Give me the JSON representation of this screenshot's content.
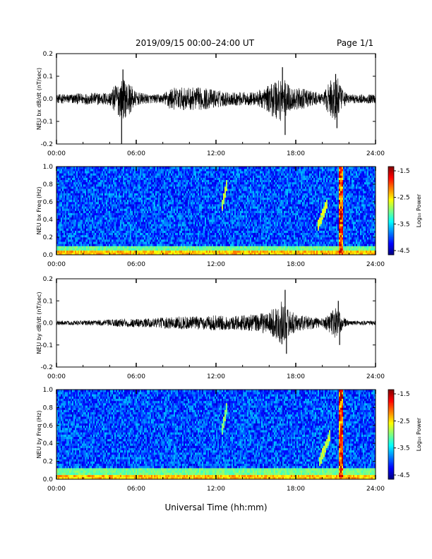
{
  "header": {
    "title": "2019/09/15  00:00–24:00 UT",
    "page": "Page 1/1"
  },
  "xaxis": {
    "title": "Universal Time (hh:mm)",
    "ticks": [
      "00:00",
      "06:00",
      "12:00",
      "18:00",
      "24:00"
    ],
    "range_hours": [
      0,
      24
    ]
  },
  "colorbar": {
    "label": "Log₁₀ Power",
    "ticks": [
      "-1.5",
      "-2.5",
      "-3.5",
      "-4.5"
    ],
    "range": [
      -4.5,
      -1.5
    ],
    "colormap": "jet"
  },
  "chart_data": [
    {
      "type": "line",
      "ylabel": "NEU bx dB/dt (nT/sec)",
      "ylim": [
        -0.2,
        0.2
      ],
      "yticks": [
        "0.2",
        "0.1",
        "0.0",
        "-0.1",
        "-0.2"
      ],
      "x_unit": "hours UT",
      "envelope": {
        "x": [
          0,
          2,
          4,
          4.5,
          5,
          5.5,
          6,
          7,
          8,
          8.5,
          10,
          11,
          12,
          13,
          14,
          15,
          16,
          16.5,
          17,
          17.5,
          18,
          19,
          20,
          20.5,
          21,
          21.5,
          22,
          24
        ],
        "amplitude": [
          0.02,
          0.025,
          0.03,
          0.07,
          0.09,
          0.07,
          0.03,
          0.02,
          0.02,
          0.05,
          0.05,
          0.05,
          0.04,
          0.03,
          0.03,
          0.03,
          0.06,
          0.1,
          0.1,
          0.06,
          0.05,
          0.04,
          0.02,
          0.07,
          0.12,
          0.04,
          0.02,
          0.02
        ]
      },
      "spikes": [
        {
          "x": 4.9,
          "y": -0.2
        },
        {
          "x": 5.0,
          "y": 0.13
        },
        {
          "x": 17.0,
          "y": 0.14
        },
        {
          "x": 17.2,
          "y": -0.16
        },
        {
          "x": 21.0,
          "y": 0.11
        },
        {
          "x": 21.1,
          "y": -0.13
        }
      ]
    },
    {
      "type": "heatmap",
      "ylabel": "NEU bx Freq (Hz)",
      "ylim": [
        0.0,
        1.0
      ],
      "yticks": [
        "1.0",
        "0.8",
        "0.6",
        "0.4",
        "0.2",
        "0.0"
      ],
      "features": [
        {
          "kind": "low_freq_band",
          "y_max": 0.05,
          "level": -2.5
        },
        {
          "kind": "vertical_streak",
          "x": 21.4,
          "level": -1.5
        },
        {
          "kind": "diagonal_streak",
          "x_start": 19.6,
          "x_end": 20.4,
          "y_start": 0.3,
          "y_end": 0.6,
          "level": -3.0
        },
        {
          "kind": "diagonal_streak",
          "x_start": 12.4,
          "x_end": 12.8,
          "y_start": 0.5,
          "y_end": 0.8,
          "level": -3.0
        }
      ]
    },
    {
      "type": "line",
      "ylabel": "NEU by dB/dt (nT/sec)",
      "ylim": [
        -0.2,
        0.2
      ],
      "yticks": [
        "0.2",
        "0.1",
        "0.0",
        "-0.1",
        "-0.2"
      ],
      "x_unit": "hours UT",
      "envelope": {
        "x": [
          0,
          2,
          4,
          5,
          6,
          7,
          8,
          9,
          10,
          11,
          12,
          13,
          14,
          15,
          16,
          16.5,
          17,
          17.5,
          18,
          19,
          20,
          20.5,
          21,
          21.5,
          22,
          24
        ],
        "amplitude": [
          0.01,
          0.01,
          0.015,
          0.02,
          0.02,
          0.02,
          0.025,
          0.03,
          0.03,
          0.03,
          0.035,
          0.03,
          0.035,
          0.04,
          0.05,
          0.08,
          0.1,
          0.06,
          0.04,
          0.03,
          0.02,
          0.04,
          0.08,
          0.03,
          0.01,
          0.01
        ]
      },
      "spikes": [
        {
          "x": 17.2,
          "y": 0.15
        },
        {
          "x": 17.3,
          "y": -0.14
        },
        {
          "x": 21.2,
          "y": 0.1
        },
        {
          "x": 21.3,
          "y": -0.1
        }
      ]
    },
    {
      "type": "heatmap",
      "ylabel": "NEU by Freq (Hz)",
      "ylim": [
        0.0,
        1.0
      ],
      "yticks": [
        "1.0",
        "0.8",
        "0.6",
        "0.4",
        "0.2",
        "0.0"
      ],
      "features": [
        {
          "kind": "low_freq_band",
          "y_max": 0.06,
          "level": -2.5
        },
        {
          "kind": "vertical_streak",
          "x": 21.4,
          "level": -1.5
        },
        {
          "kind": "diagonal_streak",
          "x_start": 19.8,
          "x_end": 20.6,
          "y_start": 0.2,
          "y_end": 0.5,
          "level": -3.0
        },
        {
          "kind": "diagonal_streak",
          "x_start": 12.4,
          "x_end": 12.8,
          "y_start": 0.5,
          "y_end": 0.8,
          "level": -3.2
        }
      ]
    }
  ]
}
